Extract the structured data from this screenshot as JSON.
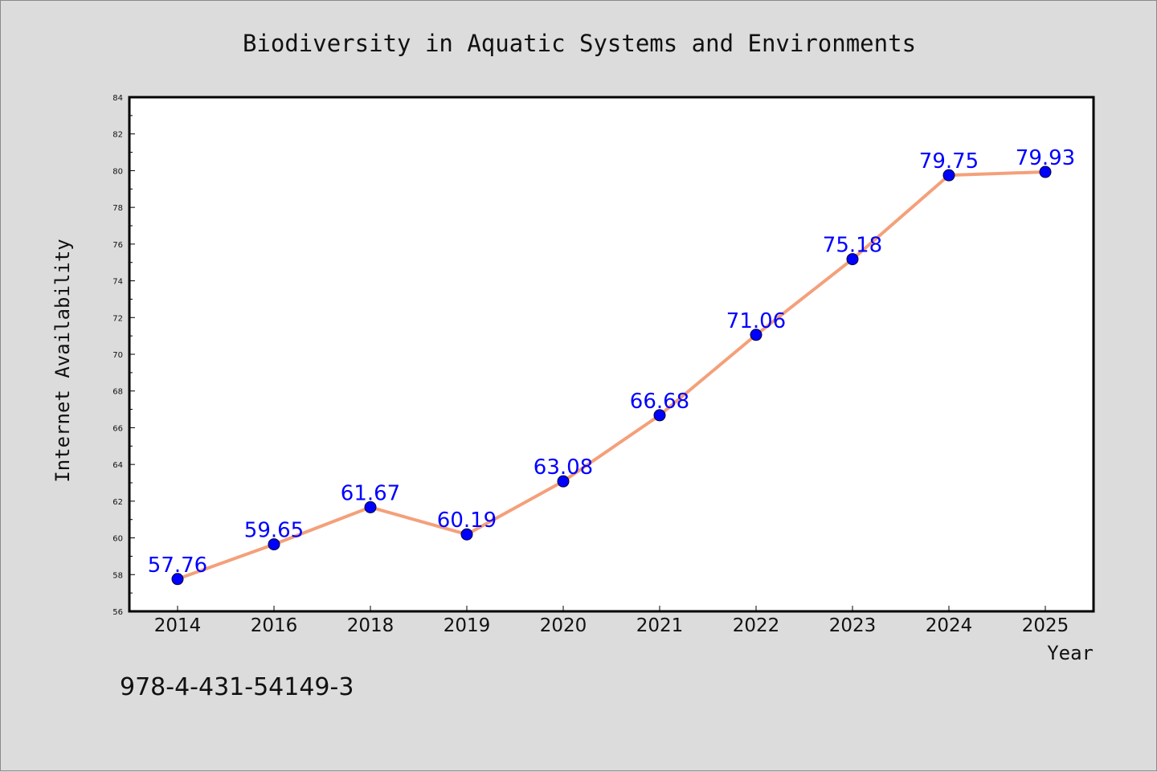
{
  "chart_data": {
    "type": "line",
    "title": "Biodiversity in Aquatic Systems and Environments",
    "xlabel": "Year",
    "ylabel": "Internet Availability",
    "categories": [
      "2014",
      "2016",
      "2018",
      "2019",
      "2020",
      "2021",
      "2022",
      "2023",
      "2024",
      "2025"
    ],
    "series": [
      {
        "values": [
          57.76,
          59.65,
          61.67,
          60.19,
          63.08,
          66.68,
          71.06,
          75.18,
          79.75,
          79.93
        ],
        "labels": [
          "57.76",
          "59.65",
          "61.67",
          "60.19",
          "63.08",
          "66.68",
          "71.06",
          "75.18",
          "79.75",
          "79.93"
        ],
        "line_color": "#f4a07a",
        "marker_color": "#0000ff"
      }
    ],
    "ylim": [
      56,
      84
    ],
    "yticks": [
      56,
      58,
      60,
      62,
      64,
      66,
      68,
      70,
      72,
      74,
      76,
      78,
      80,
      82,
      84
    ],
    "ytick_labels": [
      "56",
      "58",
      "60",
      "62",
      "64",
      "66",
      "68",
      "70",
      "72",
      "74",
      "76",
      "78",
      "80",
      "82",
      "84"
    ],
    "grid": false,
    "legend": false
  },
  "annotation": {
    "isbn": "978-4-431-54149-3"
  },
  "colors": {
    "background": "#dcdcdc",
    "plot_background": "#ffffff",
    "line": "#f4a07a",
    "marker": "#0000ff",
    "data_label": "#0000ff"
  }
}
